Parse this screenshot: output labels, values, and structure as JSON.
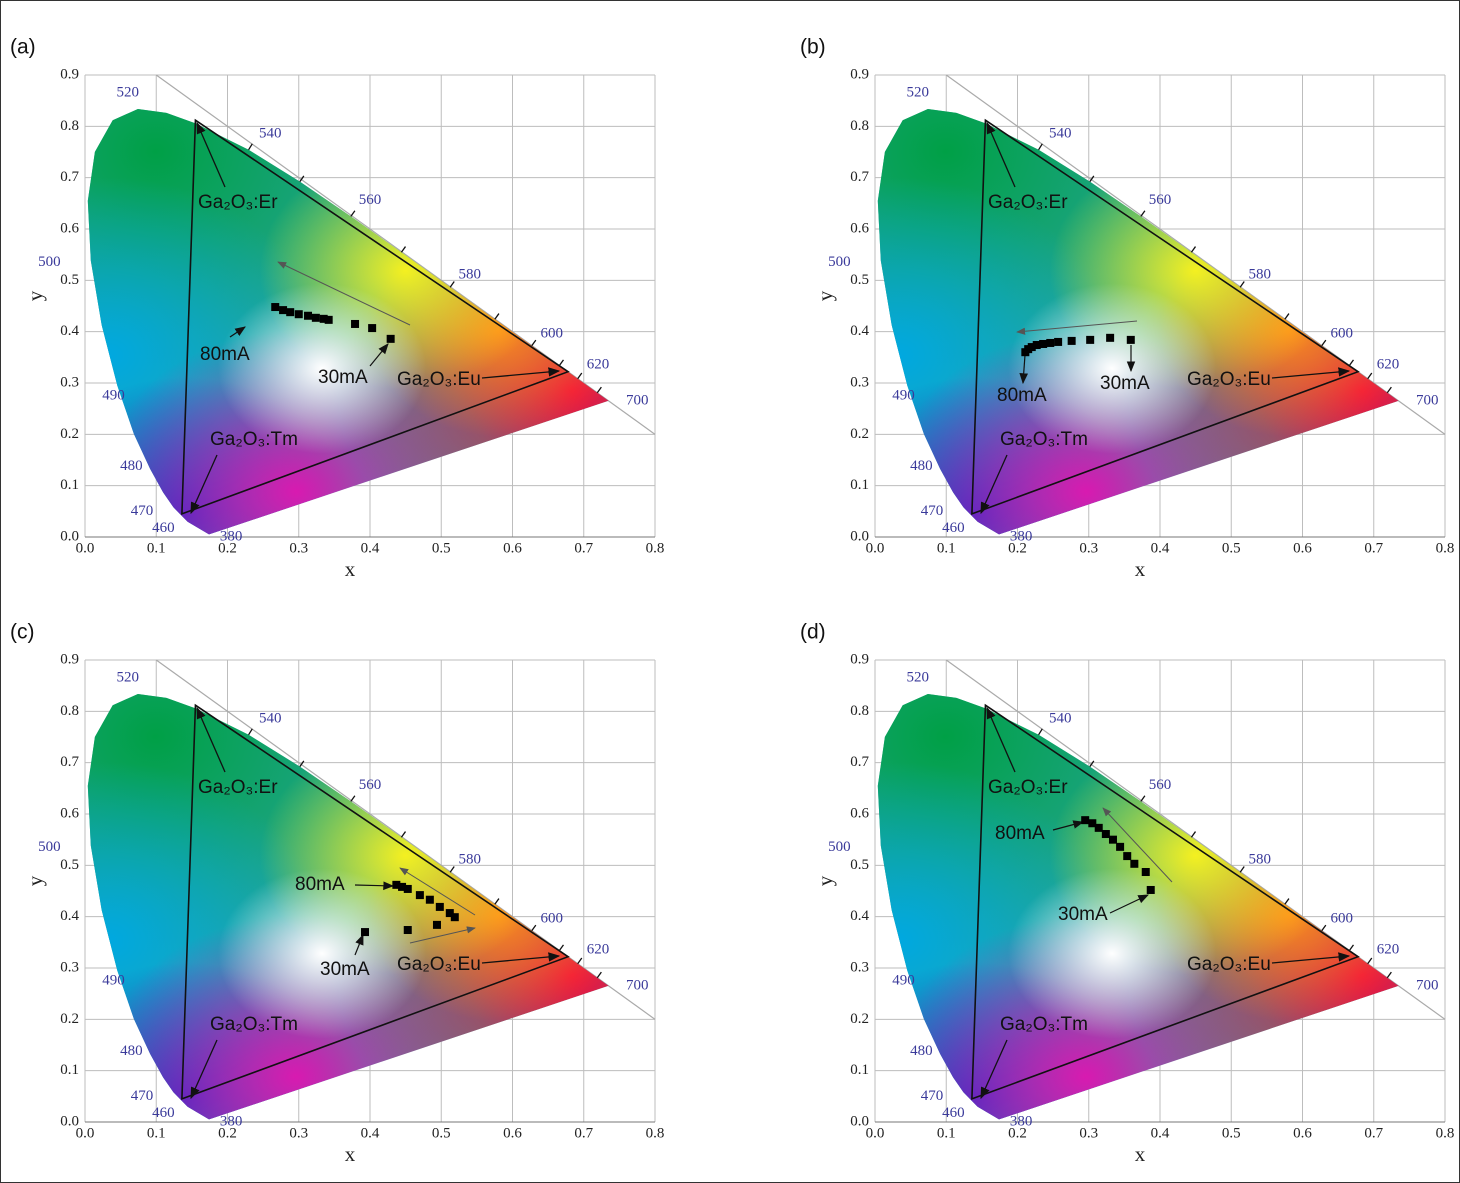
{
  "chart_data": [
    {
      "type": "scatter",
      "panel_label": "(a)",
      "xlabel": "x",
      "ylabel": "y",
      "xlim": [
        0,
        0.8
      ],
      "ylim": [
        0,
        0.9
      ],
      "xticks": [
        {
          "value": 0,
          "label": "0.0"
        },
        0.1,
        0.2,
        0.3,
        0.4,
        0.5,
        0.6,
        0.7,
        0.8
      ],
      "yticks": [
        {
          "value": 0,
          "label": "0.0"
        },
        0.1,
        0.2,
        0.3,
        0.4,
        0.5,
        0.6,
        0.7,
        0.8,
        0.9
      ],
      "grid": true,
      "color": "#000000",
      "x": [
        0.267,
        0.278,
        0.288,
        0.3,
        0.313,
        0.324,
        0.335,
        0.342,
        0.379,
        0.403,
        0.429
      ],
      "y": [
        0.448,
        0.442,
        0.438,
        0.434,
        0.431,
        0.427,
        0.425,
        0.423,
        0.415,
        0.407,
        0.386
      ],
      "wavelength_labels": [
        "520",
        "540",
        "560",
        "580",
        "600",
        "620",
        "700",
        "500",
        "490",
        "480",
        "470",
        "460",
        "380"
      ],
      "annotations": [
        "Ga₂O₃:Er",
        "Ga₂O₃:Tm",
        "Ga₂O₃:Eu"
      ],
      "current_labels": [
        "80mA",
        "30mA"
      ]
    },
    {
      "type": "scatter",
      "panel_label": "(b)",
      "xlabel": "x",
      "ylabel": "y",
      "xlim": [
        0,
        0.8
      ],
      "ylim": [
        0,
        0.9
      ],
      "xticks": [
        {
          "value": 0,
          "label": "0.0"
        },
        0.1,
        0.2,
        0.3,
        0.4,
        0.5,
        0.6,
        0.7,
        0.8
      ],
      "yticks": [
        {
          "value": 0,
          "label": "0.0"
        },
        0.1,
        0.2,
        0.3,
        0.4,
        0.5,
        0.6,
        0.7,
        0.8,
        0.9
      ],
      "grid": true,
      "color": "#000000",
      "x": [
        0.211,
        0.215,
        0.22,
        0.227,
        0.236,
        0.246,
        0.257,
        0.276,
        0.302,
        0.33,
        0.359
      ],
      "y": [
        0.36,
        0.366,
        0.37,
        0.374,
        0.376,
        0.378,
        0.38,
        0.382,
        0.384,
        0.388,
        0.384
      ],
      "wavelength_labels": [
        "520",
        "540",
        "560",
        "580",
        "600",
        "620",
        "700",
        "500",
        "490",
        "480",
        "470",
        "460",
        "380"
      ],
      "annotations": [
        "Ga₂O₃:Er",
        "Ga₂O₃:Tm",
        "Ga₂O₃:Eu"
      ],
      "current_labels": [
        "80mA",
        "30mA"
      ]
    },
    {
      "type": "scatter",
      "panel_label": "(c)",
      "xlabel": "x",
      "ylabel": "y",
      "xlim": [
        0,
        0.8
      ],
      "ylim": [
        0,
        0.9
      ],
      "xticks": [
        {
          "value": 0,
          "label": "0.0"
        },
        0.1,
        0.2,
        0.3,
        0.4,
        0.5,
        0.6,
        0.7,
        0.8
      ],
      "yticks": [
        {
          "value": 0,
          "label": "0.0"
        },
        0.1,
        0.2,
        0.3,
        0.4,
        0.5,
        0.6,
        0.7,
        0.8,
        0.9
      ],
      "grid": true,
      "color": "#000000",
      "x": [
        0.437,
        0.445,
        0.453,
        0.47,
        0.484,
        0.498,
        0.512,
        0.519,
        0.494,
        0.453,
        0.393
      ],
      "y": [
        0.462,
        0.458,
        0.454,
        0.442,
        0.433,
        0.419,
        0.407,
        0.399,
        0.384,
        0.374,
        0.37
      ],
      "wavelength_labels": [
        "520",
        "540",
        "560",
        "580",
        "600",
        "620",
        "700",
        "500",
        "490",
        "480",
        "470",
        "460",
        "380"
      ],
      "annotations": [
        "Ga₂O₃:Er",
        "Ga₂O₃:Tm",
        "Ga₂O₃:Eu"
      ],
      "current_labels": [
        "80mA",
        "30mA"
      ]
    },
    {
      "type": "scatter",
      "panel_label": "(d)",
      "xlabel": "x",
      "ylabel": "y",
      "xlim": [
        0,
        0.8
      ],
      "ylim": [
        0,
        0.9
      ],
      "xticks": [
        {
          "value": 0,
          "label": "0.0"
        },
        0.1,
        0.2,
        0.3,
        0.4,
        0.5,
        0.6,
        0.7,
        0.8
      ],
      "yticks": [
        {
          "value": 0,
          "label": "0.0"
        },
        0.1,
        0.2,
        0.3,
        0.4,
        0.5,
        0.6,
        0.7,
        0.8,
        0.9
      ],
      "grid": true,
      "color": "#000000",
      "x": [
        0.295,
        0.305,
        0.314,
        0.324,
        0.334,
        0.344,
        0.354,
        0.364,
        0.38,
        0.387
      ],
      "y": [
        0.588,
        0.582,
        0.573,
        0.561,
        0.55,
        0.536,
        0.518,
        0.503,
        0.487,
        0.452
      ],
      "wavelength_labels": [
        "520",
        "540",
        "560",
        "580",
        "600",
        "620",
        "700",
        "500",
        "490",
        "480",
        "470",
        "460",
        "380"
      ],
      "annotations": [
        "Ga₂O₃:Er",
        "Ga₂O₃:Tm",
        "Ga₂O₃:Eu"
      ],
      "current_labels": [
        "80mA",
        "30mA"
      ]
    }
  ]
}
